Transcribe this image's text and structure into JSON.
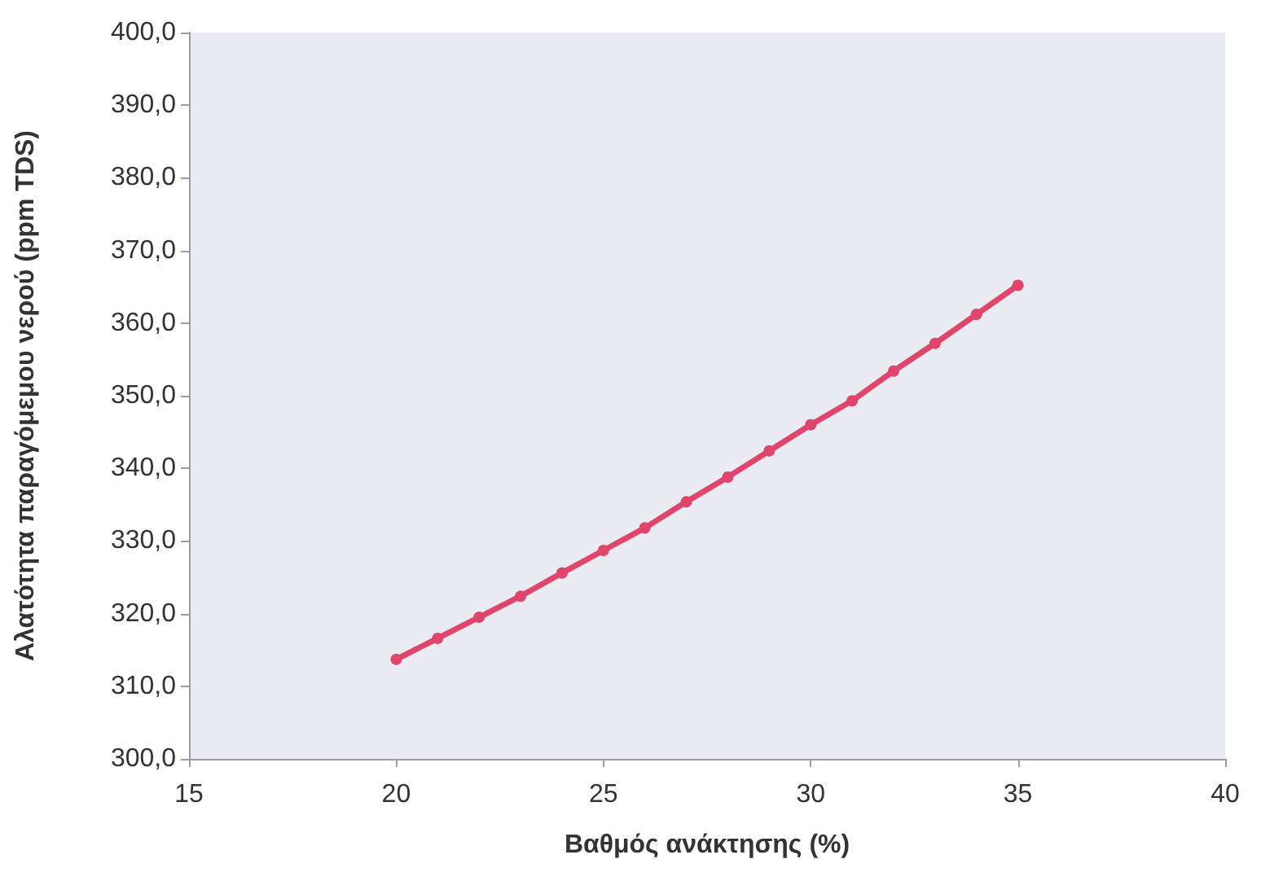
{
  "chart_data": {
    "type": "line",
    "xlabel": "Βαθμός ανάκτησης (%)",
    "ylabel": "Αλατότητα παραγόμεμου νερού (ppm TDS)",
    "x": [
      20,
      21,
      22,
      23,
      24,
      25,
      26,
      27,
      28,
      29,
      30,
      31,
      32,
      33,
      34,
      35
    ],
    "series": [
      {
        "color": "#e0456b",
        "values": [
          313.7,
          316.6,
          319.5,
          322.4,
          325.6,
          328.7,
          331.8,
          335.4,
          338.8,
          342.4,
          346.0,
          349.3,
          353.4,
          357.2,
          361.2,
          365.2
        ]
      }
    ],
    "xlim": [
      15,
      40
    ],
    "xticks": [
      15,
      20,
      25,
      30,
      35,
      40
    ],
    "ylim": [
      300,
      400
    ],
    "yticks": [
      {
        "value": 300,
        "label": "300,0"
      },
      {
        "value": 310,
        "label": "310,0"
      },
      {
        "value": 320,
        "label": "320,0"
      },
      {
        "value": 330,
        "label": "330,0"
      },
      {
        "value": 340,
        "label": "340,0"
      },
      {
        "value": 350,
        "label": "350,0"
      },
      {
        "value": 360,
        "label": "360,0"
      },
      {
        "value": 370,
        "label": "370,0"
      },
      {
        "value": 380,
        "label": "380,0"
      },
      {
        "value": 390,
        "label": "390,0"
      },
      {
        "value": 400,
        "label": "400,0"
      }
    ],
    "grid": false,
    "marker": "circle",
    "line_style": "solid"
  }
}
